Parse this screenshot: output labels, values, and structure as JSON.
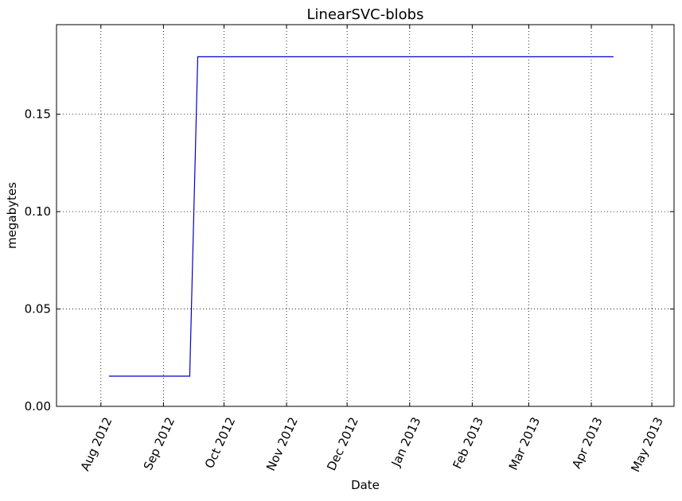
{
  "chart_data": {
    "type": "line",
    "title": "LinearSVC-blobs",
    "xlabel": "Date",
    "ylabel": "megabytes",
    "x_axis_type": "date",
    "xlim": [
      "2012-07-10",
      "2013-05-12"
    ],
    "ylim": [
      0,
      0.196
    ],
    "x_ticks": [
      {
        "date": "2012-08-01",
        "label": "Aug 2012"
      },
      {
        "date": "2012-09-01",
        "label": "Sep 2012"
      },
      {
        "date": "2012-10-01",
        "label": "Oct 2012"
      },
      {
        "date": "2012-11-01",
        "label": "Nov 2012"
      },
      {
        "date": "2012-12-01",
        "label": "Dec 2012"
      },
      {
        "date": "2013-01-01",
        "label": "Jan 2013"
      },
      {
        "date": "2013-02-01",
        "label": "Feb 2013"
      },
      {
        "date": "2013-03-01",
        "label": "Mar 2013"
      },
      {
        "date": "2013-04-01",
        "label": "Apr 2013"
      },
      {
        "date": "2013-05-01",
        "label": "May 2013"
      }
    ],
    "y_ticks": [
      {
        "value": 0.0,
        "label": "0.00"
      },
      {
        "value": 0.05,
        "label": "0.05"
      },
      {
        "value": 0.1,
        "label": "0.10"
      },
      {
        "value": 0.15,
        "label": "0.15"
      }
    ],
    "grid": true,
    "grid_style": "dotted",
    "line_color": "#0000cc",
    "series": [
      {
        "x": [
          "2012-08-05",
          "2012-09-14",
          "2012-09-18",
          "2013-04-12"
        ],
        "y": [
          0.0155,
          0.0155,
          0.1795,
          0.1795
        ]
      }
    ]
  }
}
